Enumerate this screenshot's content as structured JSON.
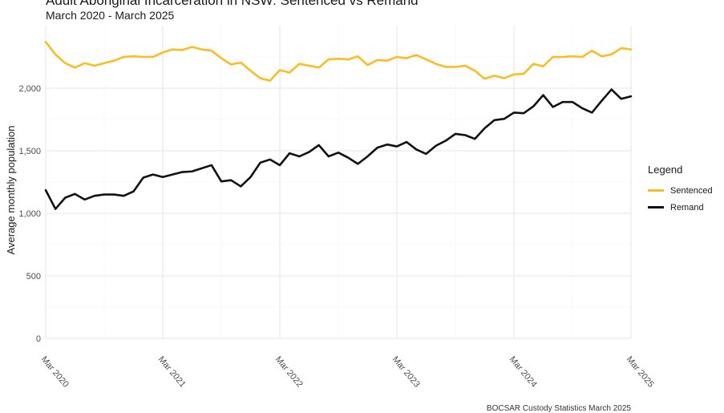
{
  "title": "Adult Aboriginal Incarceration in NSW: Sentenced vs Remand",
  "subtitle": "March 2020 - March 2025",
  "caption": "BOCSAR Custody Statistics March 2025",
  "chart_data": {
    "type": "line",
    "ylabel": "Average monthly population",
    "xlabel": "",
    "ylim": [
      0,
      2500
    ],
    "yticks": [
      0,
      500,
      1000,
      1500,
      2000
    ],
    "ytick_labels": [
      "0",
      "500",
      "1,000",
      "1,500",
      "2,000"
    ],
    "xticks": [
      "Mar 2020",
      "Mar 2021",
      "Mar 2022",
      "Mar 2023",
      "Mar 2024",
      "Mar 2025"
    ],
    "grid": true,
    "legend_title": "Legend",
    "legend_position": "right",
    "x": [
      "2020-03",
      "2020-04",
      "2020-05",
      "2020-06",
      "2020-07",
      "2020-08",
      "2020-09",
      "2020-10",
      "2020-11",
      "2020-12",
      "2021-01",
      "2021-02",
      "2021-03",
      "2021-04",
      "2021-05",
      "2021-06",
      "2021-07",
      "2021-08",
      "2021-09",
      "2021-10",
      "2021-11",
      "2021-12",
      "2022-01",
      "2022-02",
      "2022-03",
      "2022-04",
      "2022-05",
      "2022-06",
      "2022-07",
      "2022-08",
      "2022-09",
      "2022-10",
      "2022-11",
      "2022-12",
      "2023-01",
      "2023-02",
      "2023-03",
      "2023-04",
      "2023-05",
      "2023-06",
      "2023-07",
      "2023-08",
      "2023-09",
      "2023-10",
      "2023-11",
      "2023-12",
      "2024-01",
      "2024-02",
      "2024-03",
      "2024-04",
      "2024-05",
      "2024-06",
      "2024-07",
      "2024-08",
      "2024-09",
      "2024-10",
      "2024-11",
      "2024-12",
      "2025-01",
      "2025-02",
      "2025-03"
    ],
    "series": [
      {
        "name": "Sentenced",
        "color": "#FBBC24",
        "values": [
          2370,
          2270,
          2200,
          2165,
          2200,
          2180,
          2200,
          2220,
          2250,
          2255,
          2250,
          2250,
          2285,
          2310,
          2305,
          2330,
          2310,
          2300,
          2240,
          2190,
          2205,
          2140,
          2080,
          2060,
          2145,
          2125,
          2195,
          2180,
          2165,
          2230,
          2235,
          2230,
          2255,
          2185,
          2225,
          2220,
          2250,
          2240,
          2265,
          2230,
          2195,
          2170,
          2170,
          2180,
          2140,
          2075,
          2100,
          2080,
          2110,
          2115,
          2195,
          2175,
          2250,
          2250,
          2255,
          2250,
          2300,
          2255,
          2270,
          2320,
          2310
        ]
      },
      {
        "name": "Remand",
        "color": "#111111",
        "values": [
          1185,
          1035,
          1125,
          1155,
          1110,
          1140,
          1150,
          1150,
          1140,
          1175,
          1285,
          1310,
          1290,
          1310,
          1330,
          1335,
          1360,
          1385,
          1255,
          1265,
          1215,
          1290,
          1405,
          1430,
          1385,
          1480,
          1455,
          1490,
          1545,
          1455,
          1485,
          1445,
          1395,
          1455,
          1525,
          1550,
          1535,
          1570,
          1510,
          1475,
          1540,
          1580,
          1635,
          1625,
          1595,
          1680,
          1745,
          1755,
          1805,
          1800,
          1855,
          1945,
          1850,
          1890,
          1890,
          1840,
          1805,
          1900,
          1990,
          1915,
          1935
        ]
      }
    ]
  }
}
